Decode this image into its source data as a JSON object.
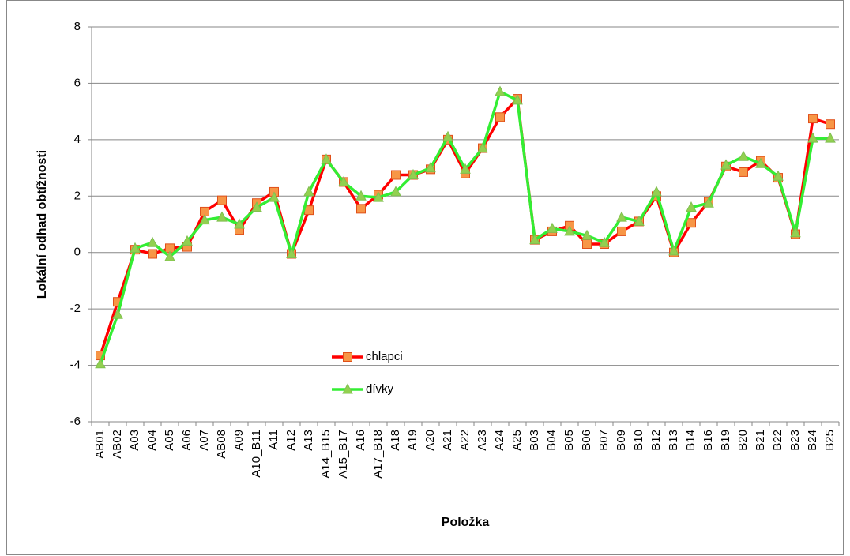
{
  "chart_data": {
    "type": "line",
    "x_label": "Položka",
    "y_label": "Lokální odhad obtížnosti",
    "categories": [
      "AB01",
      "AB02",
      "A03",
      "A04",
      "A05",
      "A06",
      "A07",
      "AB08",
      "A09",
      "A10_B11",
      "A11",
      "A12",
      "A13",
      "A14_B15",
      "A15_B17",
      "A16",
      "A17_B18",
      "A18",
      "A19",
      "A20",
      "A21",
      "A22",
      "A23",
      "A24",
      "A25",
      "B03",
      "B04",
      "B05",
      "B06",
      "B07",
      "B09",
      "B10",
      "B12",
      "B13",
      "B14",
      "B16",
      "B19",
      "B20",
      "B21",
      "B22",
      "B23",
      "B24",
      "B25"
    ],
    "series": [
      {
        "name": "chlapci",
        "color": "#ff0000",
        "marker": "square",
        "marker_color": "#f79646",
        "values": [
          -3.65,
          -1.75,
          0.1,
          -0.05,
          0.15,
          0.2,
          1.45,
          1.85,
          0.8,
          1.75,
          2.15,
          -0.05,
          1.5,
          3.3,
          2.5,
          1.55,
          2.05,
          2.75,
          2.75,
          2.95,
          4.0,
          2.8,
          3.7,
          4.8,
          5.45,
          0.45,
          0.75,
          0.95,
          0.3,
          0.3,
          0.75,
          1.1,
          2.0,
          0.0,
          1.05,
          1.8,
          3.05,
          2.85,
          3.25,
          2.65,
          0.65,
          4.75,
          4.55
        ]
      },
      {
        "name": "dívky",
        "color": "#33ee33",
        "marker": "triangle",
        "marker_color": "#92d050",
        "values": [
          -3.95,
          -2.2,
          0.15,
          0.35,
          -0.15,
          0.4,
          1.15,
          1.25,
          1.0,
          1.6,
          1.95,
          -0.05,
          2.15,
          3.3,
          2.5,
          2.0,
          1.95,
          2.15,
          2.75,
          3.0,
          4.1,
          2.95,
          3.7,
          5.7,
          5.4,
          0.45,
          0.85,
          0.75,
          0.6,
          0.35,
          1.25,
          1.1,
          2.15,
          0.05,
          1.6,
          1.75,
          3.1,
          3.4,
          3.15,
          2.7,
          0.7,
          4.05,
          4.05
        ]
      }
    ],
    "ylim": [
      -6,
      8
    ],
    "yticks": [
      -6,
      -4,
      -2,
      0,
      2,
      4,
      6,
      8
    ],
    "grid": true
  }
}
